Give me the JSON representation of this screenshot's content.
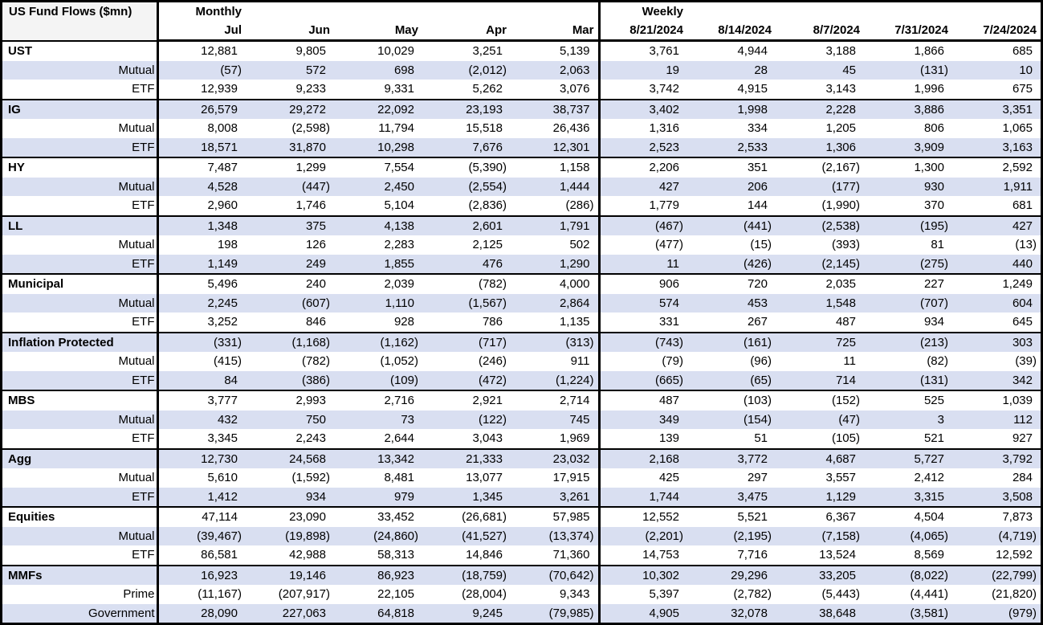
{
  "title": "US Fund Flows ($mn)",
  "colors": {
    "row_shade": "#d9dff1",
    "header_left_bg": "#f4f4f4",
    "border": "#000000"
  },
  "header": {
    "monthly_label": "Monthly",
    "weekly_label": "Weekly",
    "monthly_columns": [
      "Jul",
      "Jun",
      "May",
      "Apr",
      "Mar"
    ],
    "weekly_columns": [
      "8/21/2024",
      "8/14/2024",
      "8/7/2024",
      "7/31/2024",
      "7/24/2024"
    ]
  },
  "sections": [
    {
      "rows": [
        {
          "label": "UST",
          "header": true,
          "monthly": [
            "12,881",
            "9,805",
            "10,029",
            "3,251",
            "5,139"
          ],
          "weekly": [
            "3,761",
            "4,944",
            "3,188",
            "1,866",
            "685"
          ]
        },
        {
          "label": "Mutual",
          "monthly": [
            "(57)",
            "572",
            "698",
            "(2,012)",
            "2,063"
          ],
          "weekly": [
            "19",
            "28",
            "45",
            "(131)",
            "10"
          ]
        },
        {
          "label": "ETF",
          "monthly": [
            "12,939",
            "9,233",
            "9,331",
            "5,262",
            "3,076"
          ],
          "weekly": [
            "3,742",
            "4,915",
            "3,143",
            "1,996",
            "675"
          ]
        }
      ]
    },
    {
      "rows": [
        {
          "label": "IG",
          "header": true,
          "monthly": [
            "26,579",
            "29,272",
            "22,092",
            "23,193",
            "38,737"
          ],
          "weekly": [
            "3,402",
            "1,998",
            "2,228",
            "3,886",
            "3,351"
          ]
        },
        {
          "label": "Mutual",
          "monthly": [
            "8,008",
            "(2,598)",
            "11,794",
            "15,518",
            "26,436"
          ],
          "weekly": [
            "1,316",
            "334",
            "1,205",
            "806",
            "1,065"
          ]
        },
        {
          "label": "ETF",
          "monthly": [
            "18,571",
            "31,870",
            "10,298",
            "7,676",
            "12,301"
          ],
          "weekly": [
            "2,523",
            "2,533",
            "1,306",
            "3,909",
            "3,163"
          ]
        }
      ]
    },
    {
      "rows": [
        {
          "label": "HY",
          "header": true,
          "monthly": [
            "7,487",
            "1,299",
            "7,554",
            "(5,390)",
            "1,158"
          ],
          "weekly": [
            "2,206",
            "351",
            "(2,167)",
            "1,300",
            "2,592"
          ]
        },
        {
          "label": "Mutual",
          "monthly": [
            "4,528",
            "(447)",
            "2,450",
            "(2,554)",
            "1,444"
          ],
          "weekly": [
            "427",
            "206",
            "(177)",
            "930",
            "1,911"
          ]
        },
        {
          "label": "ETF",
          "monthly": [
            "2,960",
            "1,746",
            "5,104",
            "(2,836)",
            "(286)"
          ],
          "weekly": [
            "1,779",
            "144",
            "(1,990)",
            "370",
            "681"
          ]
        }
      ]
    },
    {
      "rows": [
        {
          "label": "LL",
          "header": true,
          "monthly": [
            "1,348",
            "375",
            "4,138",
            "2,601",
            "1,791"
          ],
          "weekly": [
            "(467)",
            "(441)",
            "(2,538)",
            "(195)",
            "427"
          ]
        },
        {
          "label": "Mutual",
          "monthly": [
            "198",
            "126",
            "2,283",
            "2,125",
            "502"
          ],
          "weekly": [
            "(477)",
            "(15)",
            "(393)",
            "81",
            "(13)"
          ]
        },
        {
          "label": "ETF",
          "monthly": [
            "1,149",
            "249",
            "1,855",
            "476",
            "1,290"
          ],
          "weekly": [
            "11",
            "(426)",
            "(2,145)",
            "(275)",
            "440"
          ]
        }
      ]
    },
    {
      "rows": [
        {
          "label": "Municipal",
          "header": true,
          "monthly": [
            "5,496",
            "240",
            "2,039",
            "(782)",
            "4,000"
          ],
          "weekly": [
            "906",
            "720",
            "2,035",
            "227",
            "1,249"
          ]
        },
        {
          "label": "Mutual",
          "monthly": [
            "2,245",
            "(607)",
            "1,110",
            "(1,567)",
            "2,864"
          ],
          "weekly": [
            "574",
            "453",
            "1,548",
            "(707)",
            "604"
          ]
        },
        {
          "label": "ETF",
          "monthly": [
            "3,252",
            "846",
            "928",
            "786",
            "1,135"
          ],
          "weekly": [
            "331",
            "267",
            "487",
            "934",
            "645"
          ]
        }
      ]
    },
    {
      "rows": [
        {
          "label": "Inflation Protected",
          "header": true,
          "monthly": [
            "(331)",
            "(1,168)",
            "(1,162)",
            "(717)",
            "(313)"
          ],
          "weekly": [
            "(743)",
            "(161)",
            "725",
            "(213)",
            "303"
          ]
        },
        {
          "label": "Mutual",
          "monthly": [
            "(415)",
            "(782)",
            "(1,052)",
            "(246)",
            "911"
          ],
          "weekly": [
            "(79)",
            "(96)",
            "11",
            "(82)",
            "(39)"
          ]
        },
        {
          "label": "ETF",
          "monthly": [
            "84",
            "(386)",
            "(109)",
            "(472)",
            "(1,224)"
          ],
          "weekly": [
            "(665)",
            "(65)",
            "714",
            "(131)",
            "342"
          ]
        }
      ]
    },
    {
      "rows": [
        {
          "label": "MBS",
          "header": true,
          "monthly": [
            "3,777",
            "2,993",
            "2,716",
            "2,921",
            "2,714"
          ],
          "weekly": [
            "487",
            "(103)",
            "(152)",
            "525",
            "1,039"
          ]
        },
        {
          "label": "Mutual",
          "monthly": [
            "432",
            "750",
            "73",
            "(122)",
            "745"
          ],
          "weekly": [
            "349",
            "(154)",
            "(47)",
            "3",
            "112"
          ]
        },
        {
          "label": "ETF",
          "monthly": [
            "3,345",
            "2,243",
            "2,644",
            "3,043",
            "1,969"
          ],
          "weekly": [
            "139",
            "51",
            "(105)",
            "521",
            "927"
          ]
        }
      ]
    },
    {
      "rows": [
        {
          "label": "Agg",
          "header": true,
          "monthly": [
            "12,730",
            "24,568",
            "13,342",
            "21,333",
            "23,032"
          ],
          "weekly": [
            "2,168",
            "3,772",
            "4,687",
            "5,727",
            "3,792"
          ]
        },
        {
          "label": "Mutual",
          "monthly": [
            "5,610",
            "(1,592)",
            "8,481",
            "13,077",
            "17,915"
          ],
          "weekly": [
            "425",
            "297",
            "3,557",
            "2,412",
            "284"
          ]
        },
        {
          "label": "ETF",
          "monthly": [
            "1,412",
            "934",
            "979",
            "1,345",
            "3,261"
          ],
          "weekly": [
            "1,744",
            "3,475",
            "1,129",
            "3,315",
            "3,508"
          ]
        }
      ]
    },
    {
      "rows": [
        {
          "label": "Equities",
          "header": true,
          "monthly": [
            "47,114",
            "23,090",
            "33,452",
            "(26,681)",
            "57,985"
          ],
          "weekly": [
            "12,552",
            "5,521",
            "6,367",
            "4,504",
            "7,873"
          ]
        },
        {
          "label": "Mutual",
          "monthly": [
            "(39,467)",
            "(19,898)",
            "(24,860)",
            "(41,527)",
            "(13,374)"
          ],
          "weekly": [
            "(2,201)",
            "(2,195)",
            "(7,158)",
            "(4,065)",
            "(4,719)"
          ]
        },
        {
          "label": "ETF",
          "monthly": [
            "86,581",
            "42,988",
            "58,313",
            "14,846",
            "71,360"
          ],
          "weekly": [
            "14,753",
            "7,716",
            "13,524",
            "8,569",
            "12,592"
          ]
        }
      ]
    },
    {
      "rows": [
        {
          "label": "MMFs",
          "header": true,
          "monthly": [
            "16,923",
            "19,146",
            "86,923",
            "(18,759)",
            "(70,642)"
          ],
          "weekly": [
            "10,302",
            "29,296",
            "33,205",
            "(8,022)",
            "(22,799)"
          ]
        },
        {
          "label": "Prime",
          "monthly": [
            "(11,167)",
            "(207,917)",
            "22,105",
            "(28,004)",
            "9,343"
          ],
          "weekly": [
            "5,397",
            "(2,782)",
            "(5,443)",
            "(4,441)",
            "(21,820)"
          ]
        },
        {
          "label": "Government",
          "monthly": [
            "28,090",
            "227,063",
            "64,818",
            "9,245",
            "(79,985)"
          ],
          "weekly": [
            "4,905",
            "32,078",
            "38,648",
            "(3,581)",
            "(979)"
          ]
        }
      ]
    }
  ]
}
